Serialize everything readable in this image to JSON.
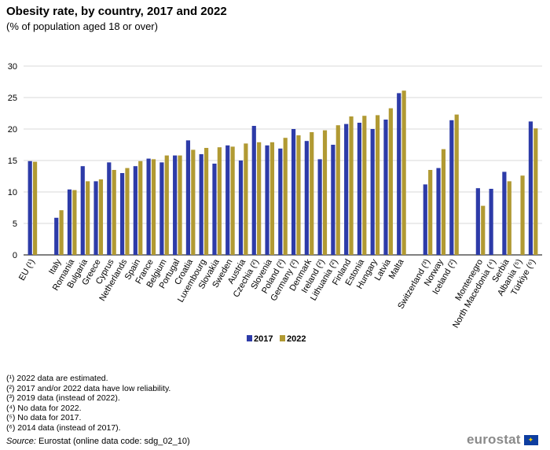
{
  "colors": {
    "series_2017": "#2d3ba8",
    "series_2022": "#b19a33",
    "grid": "#d9d9d9",
    "axis": "#000000"
  },
  "chart_data": {
    "type": "bar",
    "title": "Obesity rate, by country, 2017 and 2022",
    "subtitle": "(% of population aged 18 or over)",
    "ylim": [
      0,
      30
    ],
    "yticks": [
      "0",
      "5",
      "10",
      "15",
      "20",
      "25",
      "30"
    ],
    "categories": [
      "EU (¹)",
      "",
      "Italy",
      "Romania",
      "Bulgaria",
      "Greece",
      "Cyprus",
      "Netherlands",
      "Spain",
      "France",
      "Belgium",
      "Portugal",
      "Croatia",
      "Luxembourg",
      "Slovakia",
      "Sweden",
      "Austria",
      "Czechia (²)",
      "Slovenia",
      "Poland (²)",
      "Germany (²)",
      "Denmark",
      "Ireland (²)",
      "Lithuania (²)",
      "Finland",
      "Estonia",
      "Hungary",
      "Latvia",
      "Malta",
      "",
      "Switzerland (³)",
      "Norway",
      "Iceland (²)",
      "",
      "Montenegro",
      "North Macedonia (⁴)",
      "Serbia",
      "Albania (⁵)",
      "Türkiye (⁶)"
    ],
    "series": [
      {
        "name": "2017",
        "values": [
          14.9,
          null,
          5.9,
          10.4,
          14.1,
          11.7,
          14.7,
          13.0,
          14.1,
          15.3,
          14.7,
          15.8,
          18.2,
          16.0,
          14.5,
          17.4,
          15.0,
          20.5,
          17.4,
          16.9,
          20.0,
          18.1,
          15.2,
          17.5,
          20.8,
          21.0,
          20.0,
          21.5,
          25.7,
          null,
          11.2,
          13.8,
          21.4,
          null,
          10.6,
          10.5,
          13.2,
          null,
          21.2
        ]
      },
      {
        "name": "2022",
        "values": [
          14.8,
          null,
          7.1,
          10.3,
          11.7,
          12.0,
          13.5,
          13.8,
          14.9,
          15.2,
          15.8,
          15.8,
          16.7,
          17.0,
          17.1,
          17.2,
          17.7,
          17.9,
          17.9,
          18.6,
          19.0,
          19.5,
          19.8,
          20.6,
          22.0,
          22.1,
          22.2,
          23.3,
          26.1,
          null,
          13.5,
          16.8,
          22.3,
          null,
          7.8,
          null,
          11.7,
          12.6,
          20.1
        ]
      }
    ],
    "legend": [
      "2017",
      "2022"
    ],
    "legend_position": "bottom"
  },
  "footnotes": [
    "(¹) 2022 data are estimated.",
    "(²) 2017 and/or 2022 data have low reliability.",
    "(³) 2019 data (instead of 2022).",
    "(⁴) No data for 2022.",
    "(⁵) No data for 2017.",
    "(⁶) 2014 data (instead of 2017)."
  ],
  "source": {
    "label": "Source:",
    "text": "Eurostat (online data code: sdg_02_10)"
  },
  "logo": {
    "text": "eurostat"
  }
}
